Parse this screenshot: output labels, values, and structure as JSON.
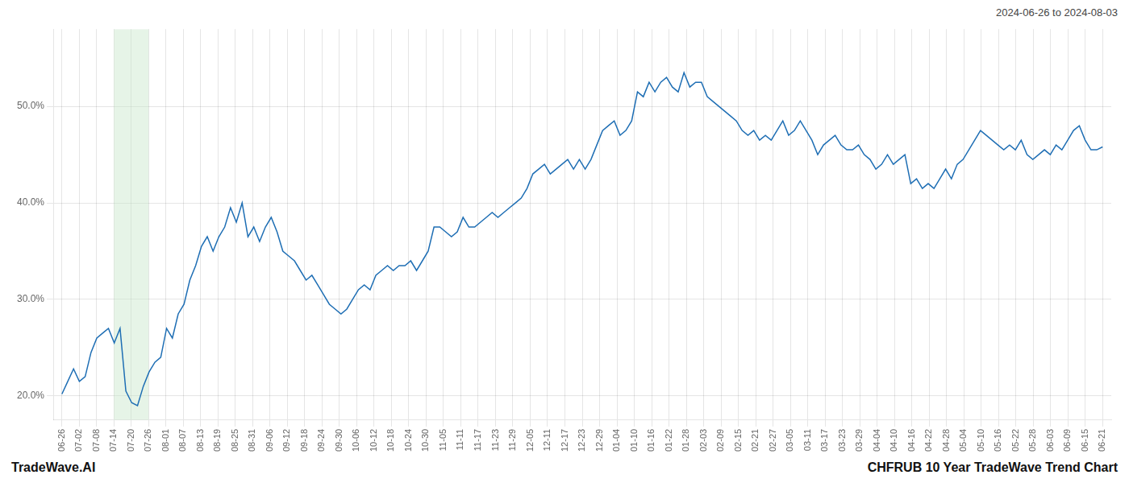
{
  "chart_data": {
    "type": "line",
    "title": "CHFRUB 10 Year TradeWave Trend Chart",
    "subtitle": "2024-06-26 to 2024-08-03",
    "annotations": [
      "TradeWave.AI"
    ],
    "color": "#1e6eb4",
    "grid": true,
    "highlight": {
      "x_start": 3.0,
      "x_end": 5.0,
      "color": "#c8e6c9"
    },
    "xlim": [
      -0.5,
      60.5
    ],
    "xticks": [
      {
        "value": 0,
        "label": "06-26"
      },
      {
        "value": 1,
        "label": "07-02"
      },
      {
        "value": 2,
        "label": "07-08"
      },
      {
        "value": 3,
        "label": "07-14"
      },
      {
        "value": 4,
        "label": "07-20"
      },
      {
        "value": 5,
        "label": "07-26"
      },
      {
        "value": 6,
        "label": "08-01"
      },
      {
        "value": 7,
        "label": "08-07"
      },
      {
        "value": 8,
        "label": "08-13"
      },
      {
        "value": 9,
        "label": "08-19"
      },
      {
        "value": 10,
        "label": "08-25"
      },
      {
        "value": 11,
        "label": "08-31"
      },
      {
        "value": 12,
        "label": "09-06"
      },
      {
        "value": 13,
        "label": "09-12"
      },
      {
        "value": 14,
        "label": "09-18"
      },
      {
        "value": 15,
        "label": "09-24"
      },
      {
        "value": 16,
        "label": "09-30"
      },
      {
        "value": 17,
        "label": "10-06"
      },
      {
        "value": 18,
        "label": "10-12"
      },
      {
        "value": 19,
        "label": "10-18"
      },
      {
        "value": 20,
        "label": "10-24"
      },
      {
        "value": 21,
        "label": "10-30"
      },
      {
        "value": 22,
        "label": "11-05"
      },
      {
        "value": 23,
        "label": "11-11"
      },
      {
        "value": 24,
        "label": "11-17"
      },
      {
        "value": 25,
        "label": "11-23"
      },
      {
        "value": 26,
        "label": "11-29"
      },
      {
        "value": 27,
        "label": "12-05"
      },
      {
        "value": 28,
        "label": "12-11"
      },
      {
        "value": 29,
        "label": "12-17"
      },
      {
        "value": 30,
        "label": "12-23"
      },
      {
        "value": 31,
        "label": "12-29"
      },
      {
        "value": 32,
        "label": "01-04"
      },
      {
        "value": 33,
        "label": "01-10"
      },
      {
        "value": 34,
        "label": "01-16"
      },
      {
        "value": 35,
        "label": "01-22"
      },
      {
        "value": 36,
        "label": "01-28"
      },
      {
        "value": 37,
        "label": "02-03"
      },
      {
        "value": 38,
        "label": "02-09"
      },
      {
        "value": 39,
        "label": "02-15"
      },
      {
        "value": 40,
        "label": "02-21"
      },
      {
        "value": 41,
        "label": "02-27"
      },
      {
        "value": 42,
        "label": "03-05"
      },
      {
        "value": 43,
        "label": "03-11"
      },
      {
        "value": 44,
        "label": "03-17"
      },
      {
        "value": 45,
        "label": "03-23"
      },
      {
        "value": 46,
        "label": "03-29"
      },
      {
        "value": 47,
        "label": "04-04"
      },
      {
        "value": 48,
        "label": "04-10"
      },
      {
        "value": 49,
        "label": "04-16"
      },
      {
        "value": 50,
        "label": "04-22"
      },
      {
        "value": 51,
        "label": "04-28"
      },
      {
        "value": 52,
        "label": "05-04"
      },
      {
        "value": 53,
        "label": "05-10"
      },
      {
        "value": 54,
        "label": "05-16"
      },
      {
        "value": 55,
        "label": "05-22"
      },
      {
        "value": 56,
        "label": "05-28"
      },
      {
        "value": 57,
        "label": "06-03"
      },
      {
        "value": 58,
        "label": "06-09"
      },
      {
        "value": 59,
        "label": "06-15"
      },
      {
        "value": 60,
        "label": "06-21"
      }
    ],
    "ylim": [
      17.5,
      58.0
    ],
    "yticks": [
      {
        "value": 20.0,
        "label": "20.0%"
      },
      {
        "value": 30.0,
        "label": "30.0%"
      },
      {
        "value": 40.0,
        "label": "40.0%"
      },
      {
        "value": 50.0,
        "label": "50.0%"
      }
    ],
    "x": [
      0,
      0.3352,
      0.6704,
      1.0056,
      1.3408,
      1.676,
      2.0112,
      2.3464,
      2.6816,
      3.0168,
      3.352,
      3.6872,
      4.0223,
      4.3575,
      4.6927,
      5.0279,
      5.3631,
      5.6983,
      6.0335,
      6.3687,
      6.7039,
      7.0391,
      7.3743,
      7.7095,
      8.0447,
      8.3799,
      8.7151,
      9.0503,
      9.3855,
      9.7207,
      10.0559,
      10.3911,
      10.7263,
      11.0615,
      11.3966,
      11.7318,
      12.067,
      12.4022,
      12.7374,
      13.0726,
      13.4078,
      13.743,
      14.0782,
      14.4134,
      14.7486,
      15.0838,
      15.419,
      15.7542,
      16.0894,
      16.4246,
      16.7598,
      17.095,
      17.4302,
      17.7654,
      18.1006,
      18.4358,
      18.7709,
      19.1061,
      19.4413,
      19.7765,
      20.1117,
      20.4469,
      20.7821,
      21.1173,
      21.4525,
      21.7877,
      22.1229,
      22.4581,
      22.7933,
      23.1285,
      23.4637,
      23.7989,
      24.1341,
      24.4693,
      24.8045,
      25.1397,
      25.4749,
      25.8101,
      26.1453,
      26.4804,
      26.8156,
      27.1508,
      27.486,
      27.8212,
      28.1564,
      28.4916,
      28.8268,
      29.162,
      29.4972,
      29.8324,
      30.1676,
      30.5028,
      30.838,
      31.1732,
      31.5084,
      31.8436,
      32.1788,
      32.514,
      32.8492,
      33.1844,
      33.5196,
      33.8547,
      34.1899,
      34.5251,
      34.8603,
      35.1955,
      35.5307,
      35.8659,
      36.2011,
      36.5363,
      36.8715,
      37.2067,
      37.5419,
      37.8771,
      38.2123,
      38.5475,
      38.8827,
      39.2179,
      39.5531,
      39.8883,
      40.2235,
      40.5587,
      40.8939,
      41.2291,
      41.5642,
      41.8994,
      42.2346,
      42.5698,
      42.905,
      43.2402,
      43.5754,
      43.9106,
      44.2458,
      44.581,
      44.9162,
      45.2514,
      45.5866,
      45.9218,
      46.257,
      46.5922,
      46.9274,
      47.2626,
      47.5978,
      47.933,
      48.2682,
      48.6034,
      48.9385,
      49.2737,
      49.6089,
      49.9441,
      50.2793,
      50.6145,
      50.9497,
      51.2849,
      51.6201,
      51.9553,
      52.2905,
      52.6257,
      52.9609,
      53.2961,
      53.6313,
      53.9665,
      54.3017,
      54.6369,
      54.9721,
      55.3073,
      55.6425,
      55.9777,
      56.3128,
      56.648,
      56.9832,
      57.3184,
      57.6536,
      57.9888,
      58.324,
      58.6592,
      58.9944,
      59.3296,
      59.6648,
      60
    ],
    "values": [
      20.2,
      21.5,
      22.8,
      21.5,
      22.0,
      24.5,
      26.0,
      26.5,
      27.0,
      25.5,
      27.0,
      20.5,
      19.3,
      19.0,
      21.0,
      22.5,
      23.5,
      24.0,
      27.0,
      26.0,
      28.5,
      29.5,
      32.0,
      33.5,
      35.5,
      36.5,
      35.0,
      36.5,
      37.5,
      39.5,
      38.0,
      40.0,
      36.5,
      37.5,
      36.0,
      37.5,
      38.5,
      37.0,
      35.0,
      34.5,
      34.0,
      33.0,
      32.0,
      32.5,
      31.5,
      30.5,
      29.5,
      29.0,
      28.5,
      29.0,
      30.0,
      31.0,
      31.5,
      31.0,
      32.5,
      33.0,
      33.5,
      33.0,
      33.5,
      33.5,
      34.0,
      33.0,
      34.0,
      35.0,
      37.5,
      37.5,
      37.0,
      36.5,
      37.0,
      38.5,
      37.5,
      37.5,
      38.0,
      38.5,
      39.0,
      38.5,
      39.0,
      39.5,
      40.0,
      40.5,
      41.5,
      43.0,
      43.5,
      44.0,
      43.0,
      43.5,
      44.0,
      44.5,
      43.5,
      44.5,
      43.5,
      44.5,
      46.0,
      47.5,
      48.0,
      48.5,
      47.0,
      47.5,
      48.5,
      51.5,
      51.0,
      52.5,
      51.5,
      52.5,
      53.0,
      52.0,
      51.5,
      53.5,
      52.0,
      52.5,
      52.5,
      51.0,
      50.5,
      50.0,
      49.5,
      49.0,
      48.5,
      47.5,
      47.0,
      47.5,
      46.5,
      47.0,
      46.5,
      47.5,
      48.5,
      47.0,
      47.5,
      48.5,
      47.5,
      46.5,
      45.0,
      46.0,
      46.5,
      47.0,
      46.0,
      45.5,
      45.5,
      46.0,
      45.0,
      44.5,
      43.5,
      44.0,
      45.0,
      44.0,
      44.5,
      45.0,
      42.0,
      42.5,
      41.5,
      42.0,
      41.5,
      42.5,
      43.5,
      42.5,
      44.0,
      44.5,
      45.5,
      46.5,
      47.5,
      47.0,
      46.5,
      46.0,
      45.5,
      46.0,
      45.5,
      46.5,
      45.0,
      44.5,
      45.0,
      45.5,
      45.0,
      46.0,
      45.5,
      46.5,
      47.5,
      48.0,
      46.5,
      45.5,
      45.5,
      45.8
    ]
  }
}
